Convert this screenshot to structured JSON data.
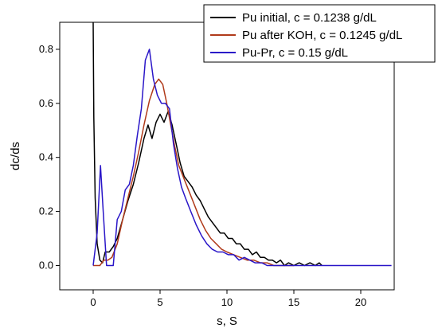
{
  "chart_data": {
    "type": "line",
    "title": "",
    "xlabel": "s, S",
    "ylabel": "dc/ds",
    "xlim": [
      -2.5,
      22.5
    ],
    "ylim": [
      -0.09,
      0.9
    ],
    "x_ticks": [
      0,
      5,
      10,
      15,
      20
    ],
    "x_tick_labels": [
      "0",
      "5",
      "10",
      "15",
      "20"
    ],
    "y_ticks": [
      0.0,
      0.2,
      0.4,
      0.6,
      0.8
    ],
    "y_tick_labels": [
      "0.0",
      "0.2",
      "0.4",
      "0.6",
      "0.8"
    ],
    "grid": false,
    "legend_position": "top-right",
    "series": [
      {
        "name": "Pu initial, c = 0.1238 g/dL",
        "color": "#000000",
        "points": [
          [
            0.0,
            0.9
          ],
          [
            0.05,
            0.55
          ],
          [
            0.15,
            0.25
          ],
          [
            0.3,
            0.08
          ],
          [
            0.5,
            0.02
          ],
          [
            0.7,
            0.01
          ],
          [
            0.9,
            0.05
          ],
          [
            1.2,
            0.05
          ],
          [
            1.5,
            0.07
          ],
          [
            1.8,
            0.1
          ],
          [
            2.2,
            0.17
          ],
          [
            2.6,
            0.24
          ],
          [
            3.0,
            0.3
          ],
          [
            3.4,
            0.38
          ],
          [
            3.8,
            0.47
          ],
          [
            4.1,
            0.52
          ],
          [
            4.4,
            0.47
          ],
          [
            4.7,
            0.53
          ],
          [
            5.0,
            0.56
          ],
          [
            5.3,
            0.53
          ],
          [
            5.6,
            0.57
          ],
          [
            5.9,
            0.52
          ],
          [
            6.2,
            0.45
          ],
          [
            6.5,
            0.38
          ],
          [
            6.8,
            0.33
          ],
          [
            7.1,
            0.31
          ],
          [
            7.4,
            0.29
          ],
          [
            7.7,
            0.26
          ],
          [
            8.0,
            0.24
          ],
          [
            8.3,
            0.21
          ],
          [
            8.6,
            0.18
          ],
          [
            8.9,
            0.16
          ],
          [
            9.2,
            0.14
          ],
          [
            9.5,
            0.12
          ],
          [
            9.8,
            0.12
          ],
          [
            10.1,
            0.1
          ],
          [
            10.4,
            0.1
          ],
          [
            10.7,
            0.08
          ],
          [
            11.0,
            0.08
          ],
          [
            11.3,
            0.06
          ],
          [
            11.6,
            0.06
          ],
          [
            11.9,
            0.04
          ],
          [
            12.2,
            0.05
          ],
          [
            12.5,
            0.03
          ],
          [
            12.8,
            0.03
          ],
          [
            13.1,
            0.02
          ],
          [
            13.4,
            0.02
          ],
          [
            13.7,
            0.01
          ],
          [
            14.0,
            0.02
          ],
          [
            14.3,
            0.0
          ],
          [
            14.6,
            0.01
          ],
          [
            15.0,
            0.0
          ],
          [
            15.4,
            0.01
          ],
          [
            15.8,
            0.0
          ],
          [
            16.2,
            0.01
          ],
          [
            16.6,
            0.0
          ],
          [
            16.9,
            0.01
          ],
          [
            17.1,
            0.0
          ]
        ]
      },
      {
        "name": "Pu after KOH, c = 0.1245 g/dL",
        "color": "#b03a1a",
        "points": [
          [
            0.0,
            0.0
          ],
          [
            0.5,
            0.0
          ],
          [
            0.8,
            0.02
          ],
          [
            1.1,
            0.02
          ],
          [
            1.4,
            0.03
          ],
          [
            1.8,
            0.08
          ],
          [
            2.2,
            0.17
          ],
          [
            2.6,
            0.25
          ],
          [
            3.0,
            0.33
          ],
          [
            3.4,
            0.42
          ],
          [
            3.8,
            0.52
          ],
          [
            4.2,
            0.61
          ],
          [
            4.6,
            0.67
          ],
          [
            4.9,
            0.69
          ],
          [
            5.2,
            0.67
          ],
          [
            5.5,
            0.6
          ],
          [
            5.8,
            0.52
          ],
          [
            6.1,
            0.44
          ],
          [
            6.4,
            0.37
          ],
          [
            6.8,
            0.32
          ],
          [
            7.2,
            0.27
          ],
          [
            7.6,
            0.22
          ],
          [
            8.0,
            0.17
          ],
          [
            8.4,
            0.13
          ],
          [
            8.8,
            0.1
          ],
          [
            9.2,
            0.08
          ],
          [
            9.6,
            0.06
          ],
          [
            10.0,
            0.05
          ],
          [
            10.5,
            0.04
          ],
          [
            11.0,
            0.03
          ],
          [
            11.5,
            0.02
          ],
          [
            12.0,
            0.02
          ],
          [
            12.5,
            0.01
          ],
          [
            13.0,
            0.01
          ],
          [
            13.5,
            0.0
          ],
          [
            14.0,
            0.0
          ],
          [
            15.0,
            0.0
          ]
        ]
      },
      {
        "name": "Pu-Pr, c = 0.15 g/dL",
        "color": "#2a16c8",
        "points": [
          [
            0.0,
            0.0
          ],
          [
            0.3,
            0.12
          ],
          [
            0.55,
            0.37
          ],
          [
            0.75,
            0.2
          ],
          [
            1.0,
            0.0
          ],
          [
            1.5,
            0.0
          ],
          [
            1.8,
            0.17
          ],
          [
            2.1,
            0.2
          ],
          [
            2.4,
            0.28
          ],
          [
            2.7,
            0.3
          ],
          [
            3.0,
            0.37
          ],
          [
            3.3,
            0.48
          ],
          [
            3.6,
            0.58
          ],
          [
            3.9,
            0.76
          ],
          [
            4.2,
            0.8
          ],
          [
            4.5,
            0.69
          ],
          [
            4.8,
            0.63
          ],
          [
            5.1,
            0.6
          ],
          [
            5.4,
            0.6
          ],
          [
            5.7,
            0.58
          ],
          [
            6.0,
            0.45
          ],
          [
            6.3,
            0.36
          ],
          [
            6.6,
            0.29
          ],
          [
            6.9,
            0.25
          ],
          [
            7.3,
            0.2
          ],
          [
            7.7,
            0.15
          ],
          [
            8.1,
            0.11
          ],
          [
            8.5,
            0.08
          ],
          [
            8.9,
            0.06
          ],
          [
            9.3,
            0.05
          ],
          [
            9.7,
            0.05
          ],
          [
            10.1,
            0.04
          ],
          [
            10.5,
            0.04
          ],
          [
            10.9,
            0.02
          ],
          [
            11.3,
            0.03
          ],
          [
            11.7,
            0.02
          ],
          [
            12.1,
            0.01
          ],
          [
            12.6,
            0.01
          ],
          [
            13.0,
            0.0
          ],
          [
            14.0,
            0.0
          ],
          [
            16.0,
            0.0
          ],
          [
            18.0,
            0.0
          ],
          [
            20.0,
            0.0
          ],
          [
            22.3,
            0.0
          ]
        ]
      }
    ]
  }
}
